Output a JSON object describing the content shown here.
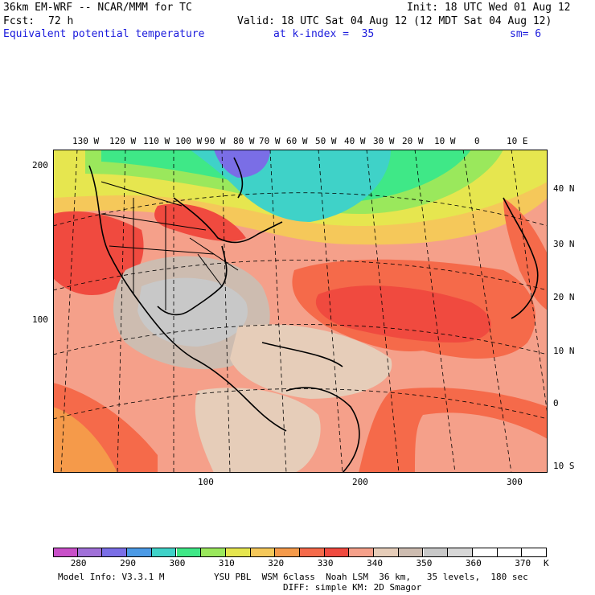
{
  "header": {
    "model": "36km EM-WRF -- NCAR/MMM for TC",
    "init": "Init: 18 UTC Wed 01 Aug 12",
    "fcst_label": "Fcst:",
    "fcst_value": "72 h",
    "valid": "Valid: 18 UTC Sat 04 Aug 12 (12 MDT Sat 04 Aug 12)",
    "field": "Equivalent potential temperature",
    "level": "at k-index =  35",
    "smooth": "sm= 6"
  },
  "axes": {
    "top_lon": [
      "130 W",
      "120 W",
      "110 W",
      "100 W",
      "90 W",
      "80 W",
      "70 W",
      "60 W",
      "50 W",
      "40 W",
      "30 W",
      "20 W",
      "10 W",
      "0",
      "10 E"
    ],
    "right_lat": [
      "40 N",
      "30 N",
      "20 N",
      "10 N",
      "0",
      "10 S"
    ],
    "left_grid": [
      "200",
      "100"
    ],
    "bottom_grid": [
      "100",
      "200",
      "300"
    ]
  },
  "legend": {
    "labels": [
      "280",
      "290",
      "300",
      "310",
      "320",
      "330",
      "340",
      "350",
      "360",
      "370"
    ],
    "unit": "K",
    "colors": [
      "#c84fc8",
      "#a070d8",
      "#7a6ee6",
      "#4b9ae6",
      "#3fd2c8",
      "#3fe887",
      "#9ae85c",
      "#e6e64f",
      "#f5c85a",
      "#f59a4a",
      "#f56a4a",
      "#f04a3f",
      "#f5a08a",
      "#e6cdb9",
      "#cdbcb0",
      "#c8c8c8",
      "#d7d7d7",
      "#ffffff",
      "#ffffff",
      "#ffffff"
    ]
  },
  "footer": {
    "info": "Model Info: V3.3.1 M",
    "physics": "YSU PBL  WSM 6class  Noah LSM  36 km,   35 levels,  180 sec",
    "diffusion": "DIFF: simple KM: 2D Smagor"
  }
}
